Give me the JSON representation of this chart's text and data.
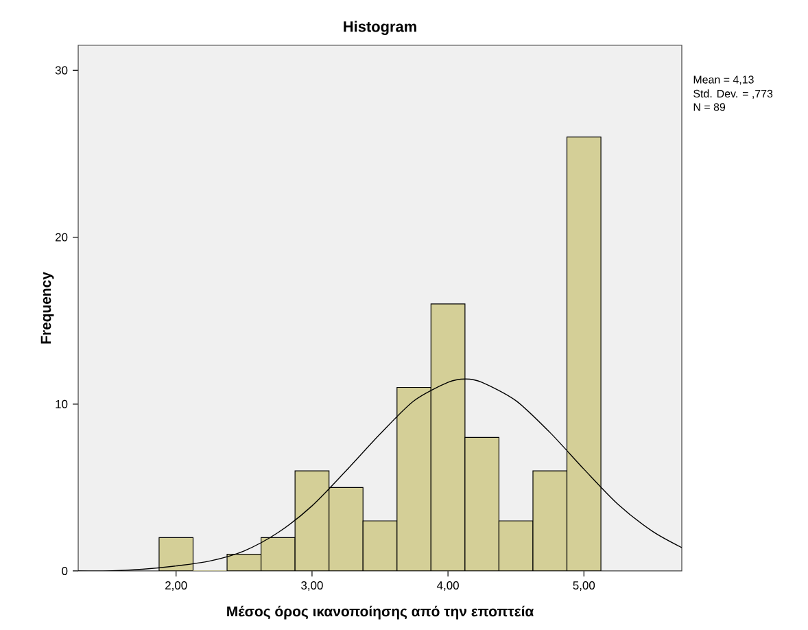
{
  "chart_data": {
    "type": "histogram",
    "title": "Histogram",
    "xlabel": "Μέσος όρος ικανοποίησης από την εποπτεία",
    "ylabel": "Frequency",
    "xlim": [
      1.28,
      5.72
    ],
    "ylim": [
      0,
      31.5
    ],
    "xticks": [
      {
        "value": 2,
        "label": "2,00"
      },
      {
        "value": 3,
        "label": "3,00"
      },
      {
        "value": 4,
        "label": "4,00"
      },
      {
        "value": 5,
        "label": "5,00"
      }
    ],
    "yticks": [
      0,
      10,
      20,
      30
    ],
    "grid": false,
    "series": [
      {
        "color": "#d4cf97",
        "bins": [
          1.875,
          2.125,
          2.375,
          2.625,
          2.875,
          3.125,
          3.375,
          3.625,
          3.875,
          4.125,
          4.375,
          4.625,
          4.875,
          5.125
        ],
        "values": [
          2,
          0,
          1,
          2,
          6,
          5,
          3,
          11,
          16,
          8,
          3,
          6,
          26
        ]
      },
      {
        "type": "line",
        "color": "#000000",
        "x": [
          1.28,
          1.5,
          1.75,
          2.0,
          2.25,
          2.5,
          2.75,
          3.0,
          3.25,
          3.5,
          3.75,
          4.0,
          4.13,
          4.25,
          4.5,
          4.75,
          5.0,
          5.25,
          5.5,
          5.72
        ],
        "values": [
          0.0,
          0.0,
          0.1,
          0.3,
          0.6,
          1.2,
          2.3,
          3.9,
          6.0,
          8.2,
          10.2,
          11.3,
          11.5,
          11.3,
          10.2,
          8.3,
          6.1,
          4.0,
          2.4,
          1.4
        ]
      }
    ],
    "annotations": [
      "Mean = 4,13",
      "Std. Dev. = ,773",
      "N = 89"
    ]
  }
}
